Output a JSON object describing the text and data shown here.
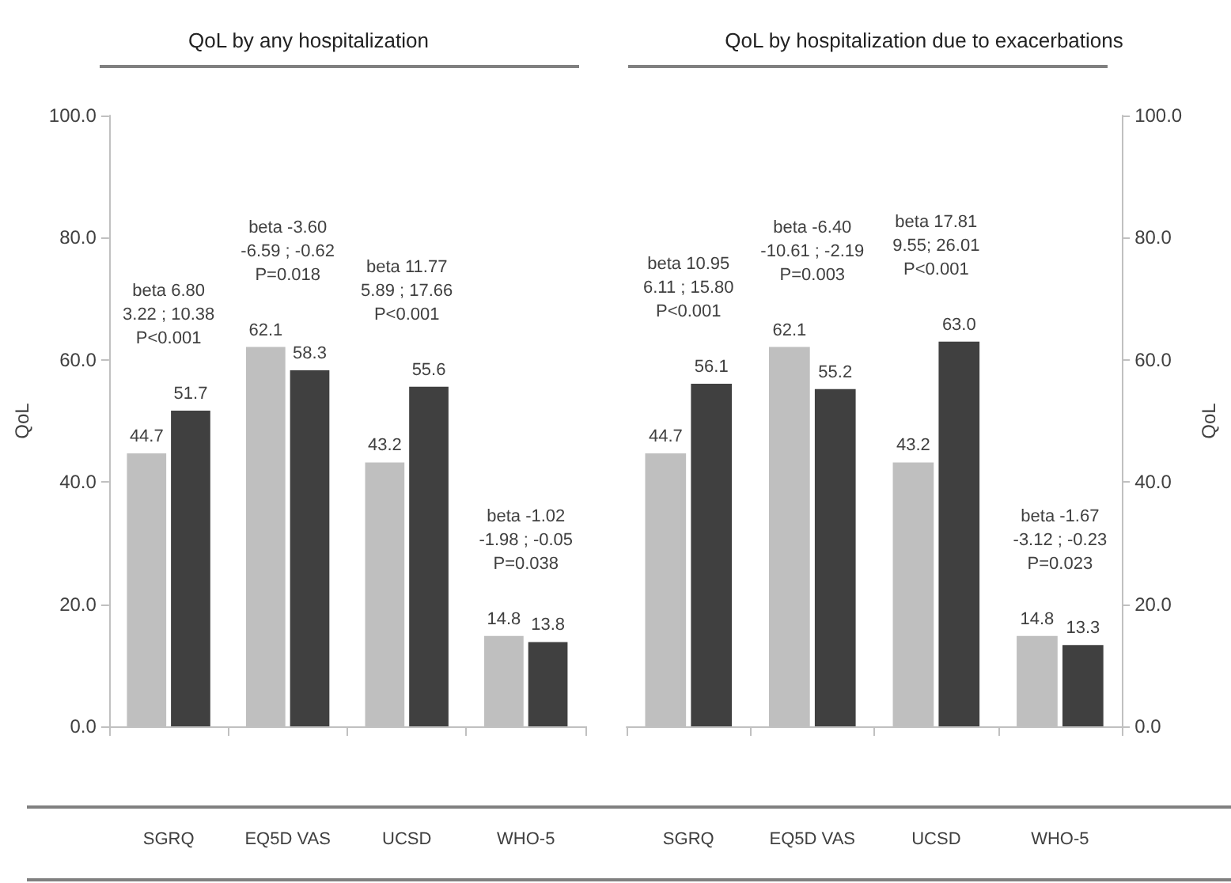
{
  "chart_data": [
    {
      "type": "bar",
      "title": "QoL by any hospitalization",
      "ylabel": "QoL",
      "categories": [
        "SGRQ",
        "EQ5D VAS",
        "UCSD",
        "WHO-5"
      ],
      "series": [
        {
          "color": "#bfbfbf",
          "values": [
            44.7,
            62.1,
            43.2,
            14.8
          ],
          "value_labels": [
            "44.7",
            "62.1",
            "43.2",
            "14.8"
          ]
        },
        {
          "color": "#404040",
          "values": [
            51.7,
            58.3,
            55.6,
            13.8
          ],
          "value_labels": [
            "51.7",
            "58.3",
            "55.6",
            "13.8"
          ]
        }
      ],
      "ylim": [
        0,
        100
      ],
      "yticks": [
        {
          "value": 0,
          "label": "0.0"
        },
        {
          "value": 20,
          "label": "20.0"
        },
        {
          "value": 40,
          "label": "40.0"
        },
        {
          "value": 60,
          "label": "60.0"
        },
        {
          "value": 80,
          "label": "80.0"
        },
        {
          "value": 100,
          "label": "100.0"
        }
      ],
      "annotations": [
        "beta 6.80\n3.22 ; 10.38\nP<0.001",
        "beta -3.60\n-6.59 ; -0.62\nP=0.018",
        "beta 11.77\n5.89 ; 17.66\nP<0.001",
        "beta -1.02\n-1.98 ; -0.05\nP=0.038"
      ],
      "grid": false
    },
    {
      "type": "bar",
      "title": "QoL by hospitalization due to exacerbations",
      "y2label": "QoL",
      "categories": [
        "SGRQ",
        "EQ5D VAS",
        "UCSD",
        "WHO-5"
      ],
      "series": [
        {
          "color": "#bfbfbf",
          "axis": "y2",
          "values": [
            44.7,
            62.1,
            43.2,
            14.8
          ],
          "value_labels": [
            "44.7",
            "62.1",
            "43.2",
            "14.8"
          ]
        },
        {
          "color": "#404040",
          "axis": "y2",
          "values": [
            56.1,
            55.2,
            63.0,
            13.3
          ],
          "value_labels": [
            "56.1",
            "55.2",
            "63.0",
            "13.3"
          ]
        }
      ],
      "y2lim": [
        0,
        100
      ],
      "y2ticks": [
        {
          "value": 0,
          "label": "0.0"
        },
        {
          "value": 20,
          "label": "20.0"
        },
        {
          "value": 40,
          "label": "40.0"
        },
        {
          "value": 60,
          "label": "60.0"
        },
        {
          "value": 80,
          "label": "80.0"
        },
        {
          "value": 100,
          "label": "100.0"
        }
      ],
      "annotations": [
        "beta 10.95\n6.11 ; 15.80\nP<0.001",
        "beta -6.40\n-10.61 ; -2.19\nP=0.003",
        "beta 17.81\n9.55; 26.01\nP<0.001",
        "beta -1.67\n-3.12 ; -0.23\nP=0.023"
      ],
      "grid": false
    }
  ]
}
